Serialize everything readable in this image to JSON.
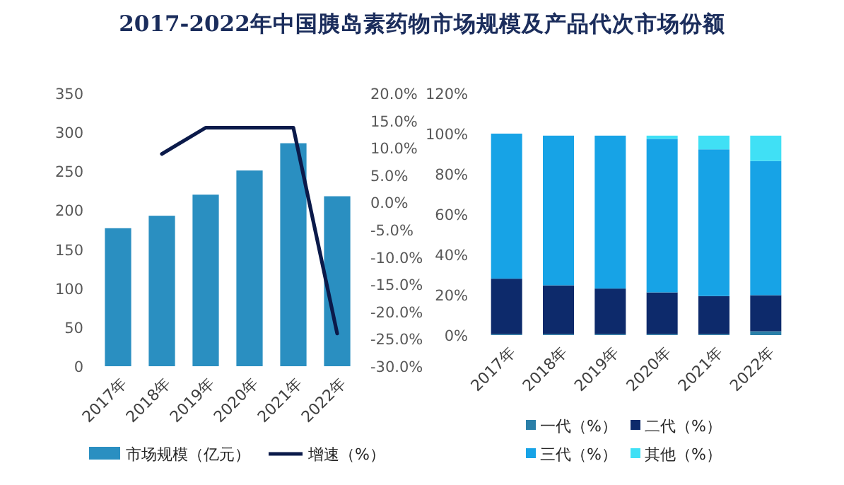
{
  "chart_data": [
    {
      "type": "bar",
      "title": "2017-2022年中国胰岛素药物市场规模及产品代次市场份额",
      "categories": [
        "2017年",
        "2018年",
        "2019年",
        "2020年",
        "2021年",
        "2022年"
      ],
      "series": [
        {
          "name": "市场规模（亿元）",
          "color": "#2a8fc1",
          "values": [
            177,
            193,
            220,
            251,
            286,
            218
          ]
        },
        {
          "name": "增速（%）",
          "type": "line",
          "axis": "y2",
          "color": "#0b1a4a",
          "values": [
            null,
            8.9,
            13.7,
            13.7,
            13.7,
            -24.0
          ]
        }
      ],
      "ylim": [
        0,
        350
      ],
      "yticks": [
        0,
        50,
        100,
        150,
        200,
        250,
        300,
        350
      ],
      "y2lim": [
        -30,
        20
      ],
      "y2ticks": [
        {
          "value": -30,
          "label": "-30.0%"
        },
        {
          "value": -25,
          "label": "-25.0%"
        },
        {
          "value": -20,
          "label": "-20.0%"
        },
        {
          "value": -15,
          "label": "-15.0%"
        },
        {
          "value": -10,
          "label": "-10.0%"
        },
        {
          "value": -5,
          "label": "-5.0%"
        },
        {
          "value": 0,
          "label": "0.0%"
        },
        {
          "value": 5,
          "label": "5.0%"
        },
        {
          "value": 10,
          "label": "10.0%"
        },
        {
          "value": 15,
          "label": "15.0%"
        },
        {
          "value": 20,
          "label": "20.0%"
        }
      ],
      "legend": "bottom"
    },
    {
      "type": "bar",
      "stacked": true,
      "categories": [
        "2017年",
        "2018年",
        "2019年",
        "2020年",
        "2021年",
        "2022年"
      ],
      "series": [
        {
          "name": "一代（%）",
          "color": "#2a7fa8",
          "values": [
            0.5,
            0.5,
            0.5,
            0.5,
            0.5,
            1.9
          ]
        },
        {
          "name": "二代（%）",
          "color": "#0d2a6b",
          "values": [
            27.5,
            24.2,
            22.6,
            20.7,
            18.9,
            17.9
          ]
        },
        {
          "name": "三代（%）",
          "color": "#17a3e6",
          "values": [
            72,
            74.3,
            75.9,
            76.2,
            72.8,
            66.6
          ]
        },
        {
          "name": "其他（%）",
          "color": "#40e0f5",
          "values": [
            0,
            0,
            0,
            1.6,
            6.8,
            12.6
          ]
        }
      ],
      "ylim": [
        0,
        120
      ],
      "yticks": [
        {
          "value": 0,
          "label": "0%"
        },
        {
          "value": 20,
          "label": "20%"
        },
        {
          "value": 40,
          "label": "40%"
        },
        {
          "value": 60,
          "label": "60%"
        },
        {
          "value": 80,
          "label": "80%"
        },
        {
          "value": 100,
          "label": "100%"
        },
        {
          "value": 120,
          "label": "120%"
        }
      ],
      "legend": "bottom"
    }
  ]
}
